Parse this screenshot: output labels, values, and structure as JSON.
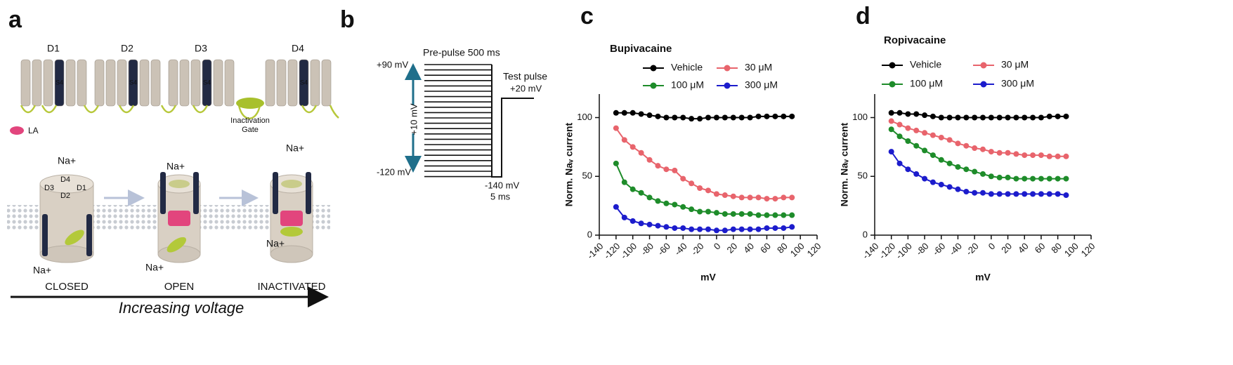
{
  "panel_a": {
    "label": "a",
    "domains": [
      "D1",
      "D2",
      "D3",
      "D4"
    ],
    "s4": [
      "S4",
      "S4",
      "S4",
      "S4"
    ],
    "inactivation_gate": [
      "Inactivation",
      "Gate"
    ],
    "ligand": "LA",
    "pore_domains": [
      "D4",
      "D3",
      "D1",
      "D2"
    ],
    "ions": [
      "Na+",
      "Na+",
      "Na+",
      "Na+",
      "Na+",
      "Na+"
    ],
    "states": [
      "CLOSED",
      "OPEN",
      "INACTIVATED"
    ],
    "axis_label": "Increasing voltage"
  },
  "panel_b": {
    "label": "b",
    "prepulse": "Pre-pulse 500 ms",
    "top_voltage": "+90 mV",
    "step": "+10 mV",
    "bottom_voltage": "-120 mV",
    "test_pulse": [
      "Test pulse",
      "+20 mV"
    ],
    "hold": [
      "-140 mV",
      "5 ms"
    ]
  },
  "chart_data": [
    {
      "type": "line",
      "panel": "c",
      "title": "Bupivacaine",
      "x_label": "mV",
      "y_label": "Norm. Naᵥ current",
      "x": [
        -120,
        -110,
        -100,
        -90,
        -80,
        -70,
        -60,
        -50,
        -40,
        -30,
        -20,
        -10,
        0,
        10,
        20,
        30,
        40,
        50,
        60,
        70,
        80,
        90
      ],
      "xlim": [
        -140,
        120
      ],
      "xticks": [
        -140,
        -120,
        -100,
        -80,
        -60,
        -40,
        -20,
        0,
        20,
        40,
        60,
        80,
        100,
        120
      ],
      "ylim": [
        0,
        120
      ],
      "yticks": [
        0,
        50,
        100
      ],
      "series": [
        {
          "name": "Vehicle",
          "color": "#000000",
          "values": [
            104,
            104,
            104,
            103,
            102,
            101,
            100,
            100,
            100,
            99,
            99,
            100,
            100,
            100,
            100,
            100,
            100,
            101,
            101,
            101,
            101,
            101
          ]
        },
        {
          "name": "30 μM",
          "color": "#e8646c",
          "values": [
            91,
            81,
            75,
            70,
            64,
            59,
            56,
            55,
            48,
            44,
            40,
            38,
            35,
            34,
            33,
            32,
            32,
            32,
            31,
            31,
            32,
            32
          ]
        },
        {
          "name": "100 μM",
          "color": "#1e8c2a",
          "values": [
            61,
            45,
            39,
            36,
            32,
            29,
            27,
            26,
            24,
            22,
            20,
            20,
            19,
            18,
            18,
            18,
            18,
            17,
            17,
            17,
            17,
            17
          ]
        },
        {
          "name": "300 μM",
          "color": "#1c1ccc",
          "values": [
            24,
            15,
            12,
            10,
            9,
            8,
            7,
            6,
            6,
            5,
            5,
            5,
            4,
            4,
            5,
            5,
            5,
            5,
            6,
            6,
            6,
            7
          ]
        }
      ]
    },
    {
      "type": "line",
      "panel": "d",
      "title": "Ropivacaine",
      "x_label": "mV",
      "y_label": "Norm. Naᵥ current",
      "x": [
        -120,
        -110,
        -100,
        -90,
        -80,
        -70,
        -60,
        -50,
        -40,
        -30,
        -20,
        -10,
        0,
        10,
        20,
        30,
        40,
        50,
        60,
        70,
        80,
        90
      ],
      "xlim": [
        -140,
        120
      ],
      "xticks": [
        -140,
        -120,
        -100,
        -80,
        -60,
        -40,
        -20,
        0,
        20,
        40,
        60,
        80,
        100,
        120
      ],
      "ylim": [
        0,
        120
      ],
      "yticks": [
        0,
        50,
        100
      ],
      "series": [
        {
          "name": "Vehicle",
          "color": "#000000",
          "values": [
            104,
            104,
            103,
            103,
            102,
            101,
            100,
            100,
            100,
            100,
            100,
            100,
            100,
            100,
            100,
            100,
            100,
            100,
            100,
            101,
            101,
            101
          ]
        },
        {
          "name": "30 μM",
          "color": "#e8646c",
          "values": [
            97,
            94,
            91,
            89,
            87,
            85,
            83,
            81,
            78,
            76,
            74,
            73,
            71,
            70,
            70,
            69,
            68,
            68,
            68,
            67,
            67,
            67
          ]
        },
        {
          "name": "100 μM",
          "color": "#1e8c2a",
          "values": [
            90,
            84,
            80,
            76,
            72,
            68,
            64,
            61,
            58,
            56,
            54,
            52,
            50,
            49,
            49,
            48,
            48,
            48,
            48,
            48,
            48,
            48
          ]
        },
        {
          "name": "300 μM",
          "color": "#1c1ccc",
          "values": [
            71,
            61,
            56,
            52,
            48,
            45,
            43,
            41,
            39,
            37,
            36,
            36,
            35,
            35,
            35,
            35,
            35,
            35,
            35,
            35,
            35,
            34
          ]
        }
      ]
    }
  ]
}
